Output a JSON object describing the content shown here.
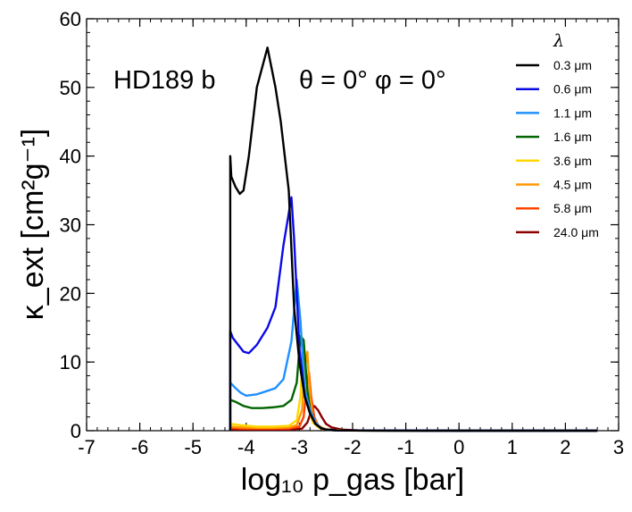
{
  "chart_data": {
    "type": "line",
    "title": "",
    "annotation": "HD189 b",
    "angle_label": "θ = 0°  φ = 0°",
    "xlabel": "log₁₀ p_gas [bar]",
    "ylabel": "κ_ext [cm²g⁻¹]",
    "xlim": [
      -7,
      3
    ],
    "ylim": [
      0,
      60
    ],
    "xticks": [
      -7,
      -6,
      -5,
      -4,
      -3,
      -2,
      -1,
      0,
      1,
      2,
      3
    ],
    "xtick_labels": [
      "-7",
      "-6",
      "-5",
      "-4",
      "-3",
      "-2",
      "-1",
      "0",
      "1",
      "2",
      "3"
    ],
    "yticks": [
      0,
      10,
      20,
      30,
      40,
      50,
      60
    ],
    "ytick_labels": [
      "0",
      "10",
      "20",
      "30",
      "40",
      "50",
      "60"
    ],
    "legend_title": "λ",
    "legend_position": "top-right",
    "series": [
      {
        "name": "0.3 μm",
        "color": "#000000",
        "x": [
          -4.3,
          -4.3,
          -4.28,
          -4.2,
          -4.12,
          -4.05,
          -3.95,
          -3.8,
          -3.6,
          -3.45,
          -3.35,
          -3.2,
          -3.1,
          -3.0,
          -2.9,
          -2.8,
          -2.7,
          -2.6,
          -2.5,
          -2.3,
          -2.0,
          -1.5,
          0,
          2.6
        ],
        "y": [
          0,
          40,
          37,
          35.5,
          34.5,
          35,
          40,
          50,
          55.8,
          50,
          45,
          35,
          18,
          10,
          5,
          2.5,
          1,
          0.4,
          0.15,
          0.05,
          0.02,
          0.01,
          0,
          0
        ]
      },
      {
        "name": "0.6 μm",
        "color": "#0a0ae6",
        "x": [
          -4.3,
          -4.3,
          -4.25,
          -4.15,
          -4.05,
          -3.95,
          -3.8,
          -3.6,
          -3.45,
          -3.3,
          -3.15,
          -3.1,
          -3.0,
          -2.9,
          -2.8,
          -2.7,
          -2.6,
          -2.5,
          -2.3,
          -2.0,
          0,
          2.6
        ],
        "y": [
          0,
          14.5,
          13.5,
          12.5,
          11.5,
          11.3,
          12.5,
          15,
          18,
          27,
          34,
          28,
          12,
          5,
          2.5,
          1,
          0.4,
          0.15,
          0.05,
          0.02,
          0,
          0
        ]
      },
      {
        "name": "1.1 μm",
        "color": "#1e90ff",
        "x": [
          -4.3,
          -4.3,
          -4.2,
          -4.1,
          -4.0,
          -3.8,
          -3.6,
          -3.45,
          -3.3,
          -3.15,
          -3.05,
          -2.98,
          -2.9,
          -2.8,
          -2.7,
          -2.6,
          -2.5,
          -2.3,
          -2.0,
          0,
          2.6
        ],
        "y": [
          0,
          7,
          6.2,
          5.5,
          5.1,
          5.3,
          5.8,
          6.2,
          7.5,
          13,
          22,
          16,
          6,
          3,
          1.2,
          0.4,
          0.15,
          0.05,
          0.02,
          0,
          0
        ]
      },
      {
        "name": "1.6 μm",
        "color": "#006400",
        "x": [
          -4.3,
          -4.3,
          -4.2,
          -4.05,
          -3.9,
          -3.7,
          -3.5,
          -3.3,
          -3.15,
          -3.05,
          -2.98,
          -2.92,
          -2.85,
          -2.8,
          -2.7,
          -2.6,
          -2.5,
          -2.3,
          -2.0,
          0,
          2.6
        ],
        "y": [
          0,
          4.5,
          4.2,
          3.6,
          3.3,
          3.3,
          3.4,
          3.6,
          4.5,
          7,
          13.8,
          13.2,
          6,
          3,
          1.2,
          0.4,
          0.15,
          0.05,
          0.02,
          0,
          0
        ]
      },
      {
        "name": "3.6 μm",
        "color": "#ffd700",
        "x": [
          -4.3,
          -4.3,
          -4.1,
          -3.8,
          -3.5,
          -3.2,
          -3.05,
          -2.98,
          -2.92,
          -2.88,
          -2.82,
          -2.75,
          -2.65,
          -2.55,
          -2.4,
          -2.1,
          0,
          2.6
        ],
        "y": [
          0,
          1.0,
          0.8,
          0.6,
          0.6,
          0.7,
          1.5,
          5,
          13.2,
          8,
          3,
          1.2,
          0.5,
          0.2,
          0.08,
          0.03,
          0,
          0
        ]
      },
      {
        "name": "4.5 μm",
        "color": "#ff9900",
        "x": [
          -4.3,
          -4.3,
          -4.1,
          -3.8,
          -3.5,
          -3.2,
          -3.05,
          -2.95,
          -2.9,
          -2.85,
          -2.8,
          -2.75,
          -2.65,
          -2.55,
          -2.4,
          -2.1,
          0,
          2.6
        ],
        "y": [
          0,
          0.6,
          0.5,
          0.4,
          0.4,
          0.5,
          0.8,
          3,
          9,
          11.5,
          5,
          2,
          0.8,
          0.3,
          0.1,
          0.03,
          0,
          0
        ]
      },
      {
        "name": "5.8 μm",
        "color": "#ff4500",
        "x": [
          -4.3,
          -4.3,
          -4.1,
          -3.8,
          -3.5,
          -3.2,
          -3.0,
          -2.92,
          -2.87,
          -2.82,
          -2.78,
          -2.72,
          -2.65,
          -2.55,
          -2.4,
          -2.1,
          0,
          2.6
        ],
        "y": [
          0,
          0.4,
          0.3,
          0.3,
          0.3,
          0.3,
          0.6,
          2,
          6,
          8.5,
          5,
          2,
          0.8,
          0.3,
          0.1,
          0.03,
          0,
          0
        ]
      },
      {
        "name": "24.0 μm",
        "color": "#8b0000",
        "x": [
          -4.3,
          -4.3,
          -4.0,
          -3.6,
          -3.2,
          -2.95,
          -2.85,
          -2.78,
          -2.72,
          -2.65,
          -2.58,
          -2.5,
          -2.4,
          -2.2,
          -1.9,
          0,
          2.6
        ],
        "y": [
          0,
          0.2,
          0.15,
          0.15,
          0.15,
          0.3,
          1.2,
          2.8,
          3.6,
          3.0,
          2.0,
          1.0,
          0.5,
          0.15,
          0.05,
          0,
          0
        ]
      }
    ]
  }
}
